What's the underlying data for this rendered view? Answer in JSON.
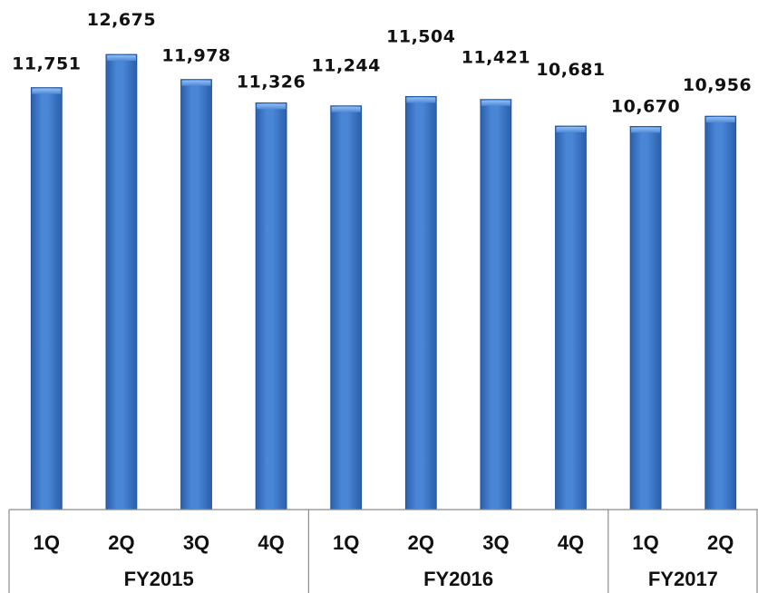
{
  "chart_data": {
    "type": "bar",
    "categories": [
      "1Q",
      "2Q",
      "3Q",
      "4Q",
      "1Q",
      "2Q",
      "3Q",
      "4Q",
      "1Q",
      "2Q"
    ],
    "groups": [
      {
        "label": "FY2015",
        "count": 4
      },
      {
        "label": "FY2016",
        "count": 4
      },
      {
        "label": "FY2017",
        "count": 2
      }
    ],
    "values": [
      11751,
      12675,
      11978,
      11326,
      11244,
      11504,
      11421,
      10681,
      10670,
      10956
    ],
    "value_labels": [
      "11,751",
      "12,675",
      "11,978",
      "11,326",
      "11,244",
      "11,504",
      "11,421",
      "10,681",
      "10,670",
      "10,956"
    ],
    "bar_color": "#3a74c4",
    "bar_highlight": "#6fa6ea",
    "bar_shadow": "#1f4f97",
    "ylim": [
      0,
      12675
    ],
    "grid": false,
    "legend": "none",
    "title": "",
    "xlabel": "",
    "ylabel": ""
  }
}
